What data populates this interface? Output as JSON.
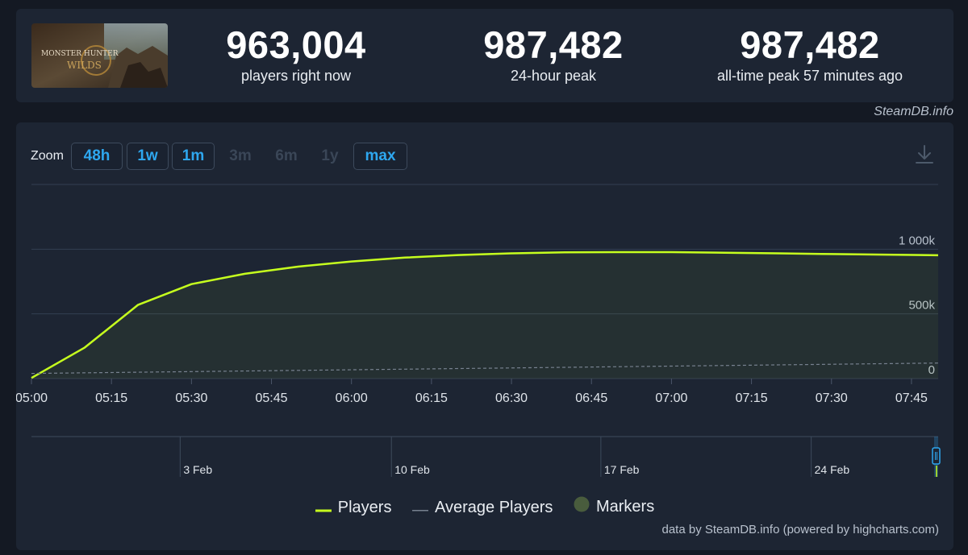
{
  "game": {
    "logo_text_top": "MONSTER HUNTER",
    "logo_text_bottom": "WILDS"
  },
  "stats": [
    {
      "value": "963,004",
      "label": "players right now"
    },
    {
      "value": "987,482",
      "label": "24-hour peak"
    },
    {
      "value": "987,482",
      "label": "all-time peak 57 minutes ago"
    }
  ],
  "credit_top": "SteamDB.info",
  "zoom": {
    "label": "Zoom",
    "options": [
      {
        "label": "48h",
        "enabled": true
      },
      {
        "label": "1w",
        "enabled": true
      },
      {
        "label": "1m",
        "enabled": true
      },
      {
        "label": "3m",
        "enabled": false
      },
      {
        "label": "6m",
        "enabled": false
      },
      {
        "label": "1y",
        "enabled": false
      },
      {
        "label": "max",
        "enabled": true
      }
    ]
  },
  "colors": {
    "players": "#c6ff1e",
    "average": "#77818f",
    "markers": "#495c3d",
    "accent": "#2ea7ef"
  },
  "chart_data": {
    "type": "line",
    "x_ticks": [
      "05:00",
      "05:15",
      "05:30",
      "05:45",
      "06:00",
      "06:15",
      "06:30",
      "06:45",
      "07:00",
      "07:15",
      "07:30",
      "07:45"
    ],
    "y_ticks": [
      "0",
      "500k",
      "1 000k"
    ],
    "ylim": [
      0,
      1500000
    ],
    "xlim": [
      0,
      170
    ],
    "series": [
      {
        "name": "Players",
        "x": [
          0,
          10,
          20,
          30,
          40,
          50,
          60,
          70,
          80,
          90,
          100,
          110,
          120,
          130,
          140,
          150,
          160,
          170
        ],
        "values": [
          5000,
          240000,
          570000,
          730000,
          810000,
          865000,
          905000,
          935000,
          955000,
          968000,
          975000,
          977000,
          977000,
          973000,
          968000,
          962000,
          958000,
          953000
        ]
      },
      {
        "name": "Average Players",
        "x": [
          0,
          170
        ],
        "values": [
          40000,
          120000
        ]
      }
    ],
    "navigator": {
      "labels": [
        "3 Feb",
        "10 Feb",
        "17 Feb",
        "24 Feb"
      ],
      "positions": [
        0.164,
        0.397,
        0.628,
        0.86
      ]
    },
    "legend": [
      "Players",
      "Average Players",
      "Markers"
    ],
    "grid": true
  },
  "credit_bottom": "data by SteamDB.info (powered by highcharts.com)"
}
